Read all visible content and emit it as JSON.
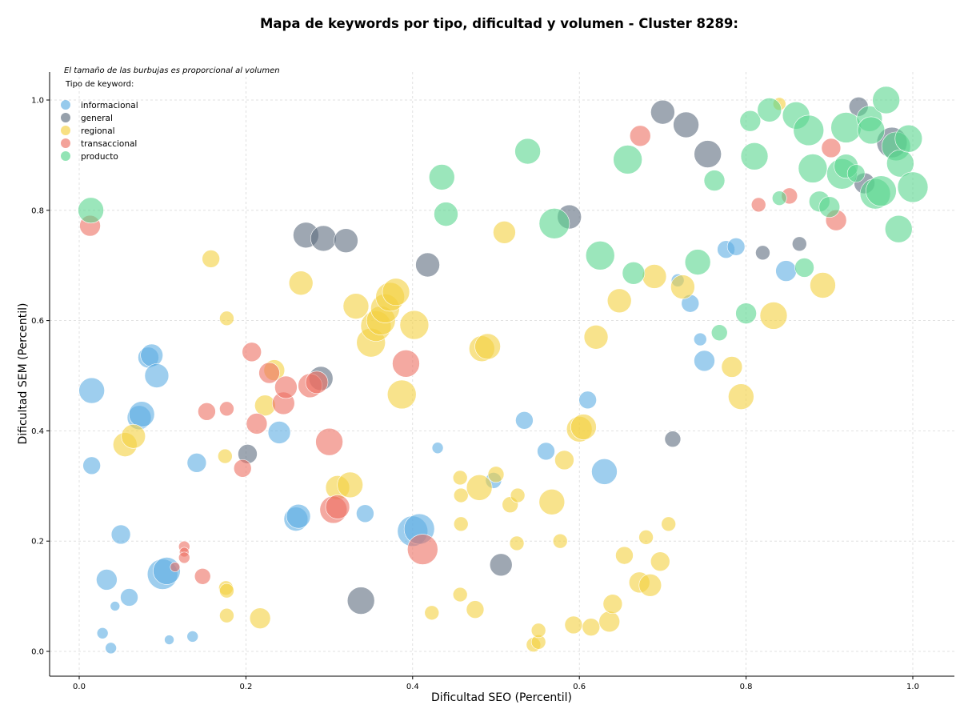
{
  "chart_data": {
    "type": "scatter",
    "title": "Mapa de keywords por tipo, dificultad y volumen - Cluster 8289:",
    "subtitle": "El tamaño de las burbujas es proporcional al volumen",
    "xlabel": "Dificultad SEO (Percentil)",
    "ylabel": "Dificultad SEM (Percentil)",
    "xlim": [
      -0.035,
      1.05
    ],
    "ylim": [
      -0.045,
      1.05
    ],
    "x_ticks": [
      "0.0",
      "0.2",
      "0.4",
      "0.6",
      "0.8",
      "1.0"
    ],
    "y_ticks": [
      "0.0",
      "0.2",
      "0.4",
      "0.6",
      "0.8",
      "1.0"
    ],
    "grid": true,
    "legend_title": "Tipo de keyword:",
    "legend_position": "top-left",
    "size_encoding": "volume",
    "series": [
      {
        "name": "informacional",
        "color": "#5dade2",
        "points": [
          [
            0.015,
            0.473,
            16
          ],
          [
            0.015,
            0.337,
            11
          ],
          [
            0.028,
            0.033,
            7
          ],
          [
            0.033,
            0.13,
            13
          ],
          [
            0.038,
            0.006,
            7
          ],
          [
            0.043,
            0.082,
            6
          ],
          [
            0.05,
            0.212,
            12
          ],
          [
            0.06,
            0.098,
            11
          ],
          [
            0.072,
            0.424,
            15
          ],
          [
            0.075,
            0.43,
            16
          ],
          [
            0.083,
            0.533,
            13
          ],
          [
            0.087,
            0.537,
            14
          ],
          [
            0.093,
            0.5,
            15
          ],
          [
            0.1,
            0.14,
            19
          ],
          [
            0.105,
            0.146,
            17
          ],
          [
            0.108,
            0.021,
            6
          ],
          [
            0.136,
            0.027,
            7
          ],
          [
            0.141,
            0.342,
            12
          ],
          [
            0.24,
            0.397,
            14
          ],
          [
            0.26,
            0.24,
            15
          ],
          [
            0.263,
            0.245,
            15
          ],
          [
            0.343,
            0.25,
            11
          ],
          [
            0.4,
            0.218,
            19
          ],
          [
            0.408,
            0.222,
            19
          ],
          [
            0.43,
            0.369,
            7
          ],
          [
            0.497,
            0.31,
            10
          ],
          [
            0.534,
            0.419,
            11
          ],
          [
            0.56,
            0.363,
            11
          ],
          [
            0.61,
            0.456,
            11
          ],
          [
            0.63,
            0.326,
            16
          ],
          [
            0.718,
            0.673,
            8
          ],
          [
            0.733,
            0.631,
            11
          ],
          [
            0.745,
            0.566,
            8
          ],
          [
            0.75,
            0.527,
            13
          ],
          [
            0.776,
            0.729,
            11
          ],
          [
            0.788,
            0.734,
            11
          ],
          [
            0.848,
            0.69,
            13
          ]
        ]
      },
      {
        "name": "general",
        "color": "#5d6d7e",
        "points": [
          [
            0.202,
            0.358,
            12
          ],
          [
            0.272,
            0.755,
            16
          ],
          [
            0.293,
            0.749,
            16
          ],
          [
            0.29,
            0.495,
            15
          ],
          [
            0.32,
            0.745,
            15
          ],
          [
            0.338,
            0.092,
            17
          ],
          [
            0.418,
            0.701,
            15
          ],
          [
            0.506,
            0.157,
            14
          ],
          [
            0.588,
            0.788,
            15
          ],
          [
            0.7,
            0.978,
            15
          ],
          [
            0.728,
            0.955,
            16
          ],
          [
            0.754,
            0.902,
            17
          ],
          [
            0.712,
            0.385,
            10
          ],
          [
            0.82,
            0.723,
            9
          ],
          [
            0.864,
            0.739,
            9
          ],
          [
            0.935,
            0.988,
            12
          ],
          [
            0.942,
            0.849,
            13
          ],
          [
            0.975,
            0.923,
            19
          ]
        ]
      },
      {
        "name": "regional",
        "color": "#f4d03f",
        "points": [
          [
            0.055,
            0.375,
            15
          ],
          [
            0.065,
            0.39,
            15
          ],
          [
            0.158,
            0.712,
            11
          ],
          [
            0.177,
            0.604,
            9
          ],
          [
            0.175,
            0.354,
            9
          ],
          [
            0.176,
            0.115,
            9
          ],
          [
            0.177,
            0.11,
            9
          ],
          [
            0.177,
            0.065,
            9
          ],
          [
            0.217,
            0.06,
            13
          ],
          [
            0.223,
            0.446,
            13
          ],
          [
            0.234,
            0.51,
            13
          ],
          [
            0.266,
            0.668,
            15
          ],
          [
            0.31,
            0.297,
            15
          ],
          [
            0.325,
            0.302,
            16
          ],
          [
            0.332,
            0.626,
            16
          ],
          [
            0.35,
            0.56,
            18
          ],
          [
            0.356,
            0.59,
            19
          ],
          [
            0.362,
            0.6,
            18
          ],
          [
            0.367,
            0.622,
            18
          ],
          [
            0.373,
            0.643,
            18
          ],
          [
            0.38,
            0.652,
            17
          ],
          [
            0.387,
            0.466,
            18
          ],
          [
            0.402,
            0.592,
            18
          ],
          [
            0.423,
            0.07,
            9
          ],
          [
            0.457,
            0.315,
            9
          ],
          [
            0.458,
            0.283,
            9
          ],
          [
            0.458,
            0.231,
            9
          ],
          [
            0.457,
            0.103,
            9
          ],
          [
            0.475,
            0.076,
            11
          ],
          [
            0.48,
            0.297,
            16
          ],
          [
            0.483,
            0.549,
            16
          ],
          [
            0.49,
            0.553,
            16
          ],
          [
            0.5,
            0.321,
            10
          ],
          [
            0.51,
            0.76,
            14
          ],
          [
            0.517,
            0.266,
            10
          ],
          [
            0.525,
            0.196,
            9
          ],
          [
            0.526,
            0.283,
            9
          ],
          [
            0.545,
            0.012,
            9
          ],
          [
            0.551,
            0.017,
            9
          ],
          [
            0.551,
            0.038,
            9
          ],
          [
            0.567,
            0.271,
            16
          ],
          [
            0.577,
            0.2,
            9
          ],
          [
            0.582,
            0.347,
            12
          ],
          [
            0.593,
            0.048,
            11
          ],
          [
            0.6,
            0.403,
            16
          ],
          [
            0.605,
            0.407,
            16
          ],
          [
            0.614,
            0.044,
            11
          ],
          [
            0.62,
            0.57,
            15
          ],
          [
            0.636,
            0.054,
            13
          ],
          [
            0.64,
            0.086,
            12
          ],
          [
            0.648,
            0.636,
            15
          ],
          [
            0.654,
            0.174,
            11
          ],
          [
            0.672,
            0.125,
            13
          ],
          [
            0.68,
            0.207,
            9
          ],
          [
            0.685,
            0.12,
            14
          ],
          [
            0.69,
            0.68,
            15
          ],
          [
            0.697,
            0.163,
            12
          ],
          [
            0.707,
            0.231,
            9
          ],
          [
            0.724,
            0.661,
            15
          ],
          [
            0.783,
            0.516,
            13
          ],
          [
            0.794,
            0.462,
            16
          ],
          [
            0.833,
            0.609,
            17
          ],
          [
            0.84,
            0.993,
            8
          ],
          [
            0.892,
            0.664,
            16
          ]
        ]
      },
      {
        "name": "transaccional",
        "color": "#ec7063",
        "points": [
          [
            0.013,
            0.772,
            13
          ],
          [
            0.115,
            0.153,
            6
          ],
          [
            0.126,
            0.19,
            7
          ],
          [
            0.126,
            0.18,
            6
          ],
          [
            0.126,
            0.17,
            7
          ],
          [
            0.148,
            0.136,
            10
          ],
          [
            0.153,
            0.435,
            11
          ],
          [
            0.177,
            0.44,
            9
          ],
          [
            0.196,
            0.332,
            11
          ],
          [
            0.207,
            0.543,
            12
          ],
          [
            0.213,
            0.413,
            13
          ],
          [
            0.228,
            0.505,
            13
          ],
          [
            0.245,
            0.45,
            14
          ],
          [
            0.248,
            0.479,
            14
          ],
          [
            0.277,
            0.482,
            15
          ],
          [
            0.285,
            0.488,
            14
          ],
          [
            0.3,
            0.38,
            17
          ],
          [
            0.305,
            0.257,
            17
          ],
          [
            0.31,
            0.262,
            15
          ],
          [
            0.392,
            0.522,
            17
          ],
          [
            0.412,
            0.185,
            19
          ],
          [
            0.673,
            0.935,
            13
          ],
          [
            0.815,
            0.81,
            9
          ],
          [
            0.852,
            0.826,
            10
          ],
          [
            0.902,
            0.913,
            12
          ],
          [
            0.908,
            0.782,
            13
          ]
        ]
      },
      {
        "name": "producto",
        "color": "#58d68d",
        "points": [
          [
            0.014,
            0.8,
            16
          ],
          [
            0.435,
            0.86,
            16
          ],
          [
            0.44,
            0.793,
            15
          ],
          [
            0.538,
            0.907,
            16
          ],
          [
            0.57,
            0.776,
            19
          ],
          [
            0.625,
            0.718,
            18
          ],
          [
            0.658,
            0.892,
            18
          ],
          [
            0.665,
            0.686,
            14
          ],
          [
            0.742,
            0.706,
            16
          ],
          [
            0.762,
            0.854,
            13
          ],
          [
            0.768,
            0.578,
            10
          ],
          [
            0.8,
            0.613,
            13
          ],
          [
            0.805,
            0.962,
            13
          ],
          [
            0.81,
            0.898,
            17
          ],
          [
            0.828,
            0.982,
            15
          ],
          [
            0.84,
            0.822,
            9
          ],
          [
            0.86,
            0.972,
            17
          ],
          [
            0.87,
            0.696,
            12
          ],
          [
            0.875,
            0.945,
            19
          ],
          [
            0.88,
            0.876,
            18
          ],
          [
            0.888,
            0.816,
            13
          ],
          [
            0.9,
            0.806,
            13
          ],
          [
            0.915,
            0.866,
            19
          ],
          [
            0.92,
            0.95,
            19
          ],
          [
            0.92,
            0.88,
            15
          ],
          [
            0.932,
            0.867,
            11
          ],
          [
            0.948,
            0.966,
            16
          ],
          [
            0.95,
            0.945,
            17
          ],
          [
            0.955,
            0.83,
            19
          ],
          [
            0.962,
            0.835,
            19
          ],
          [
            0.968,
            1.0,
            17
          ],
          [
            0.98,
            0.916,
            18
          ],
          [
            0.985,
            0.885,
            17
          ],
          [
            0.983,
            0.766,
            17
          ],
          [
            0.995,
            0.93,
            17
          ],
          [
            1.0,
            0.842,
            19
          ]
        ]
      }
    ]
  }
}
